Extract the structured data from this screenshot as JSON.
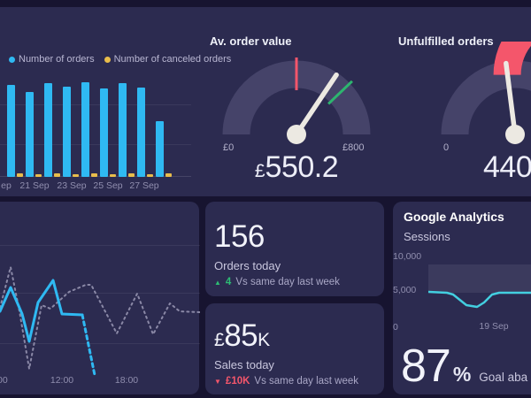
{
  "theme": {
    "page_bg": "#171430",
    "card_bg": "#2c2b50",
    "cyan": "#2fb9f2",
    "yellow": "#e9bd4b",
    "red": "#f4566b",
    "green": "#2dbd74",
    "ga_line": "#43cfe0",
    "needle": "#ece9e2",
    "gauge_track": "#454369",
    "dashed_line": "#8a88a6"
  },
  "chart_data": [
    {
      "id": "orders-per-day",
      "type": "bar",
      "legend": [
        {
          "label": "Number of orders",
          "color": "#2fb9f2"
        },
        {
          "label": "Number of canceled orders",
          "color": "#e9bd4b"
        }
      ],
      "x_labels": [
        "ep",
        "21 Sep",
        "23 Sep",
        "25 Sep",
        "27 Sep"
      ],
      "series": [
        {
          "name": "Number of orders",
          "color": "#2fb9f2",
          "values": [
            104,
            96,
            106,
            102,
            107,
            100,
            106,
            101,
            63
          ]
        },
        {
          "name": "Number of canceled orders",
          "color": "#e9bd4b",
          "values": [
            4,
            3,
            4,
            3,
            4,
            3,
            4,
            3,
            4
          ]
        }
      ],
      "ylabel": "",
      "grid": "horizontal"
    },
    {
      "id": "orders-by-hour",
      "type": "line",
      "x_labels": [
        "00",
        "12:00",
        "18:00"
      ],
      "series": [
        {
          "name": "today",
          "style": "solid",
          "color": "#2fb9f2",
          "points": [
            [
              0,
              84
            ],
            [
              12,
              57
            ],
            [
              25,
              87
            ],
            [
              33,
              118
            ],
            [
              43,
              74
            ],
            [
              60,
              49
            ],
            [
              70,
              87
            ],
            [
              93,
              88
            ]
          ]
        },
        {
          "name": "today-projection",
          "style": "dashed",
          "color": "#2fb9f2",
          "points": [
            [
              93,
              88
            ],
            [
              100,
              122
            ],
            [
              107,
              156
            ]
          ]
        },
        {
          "name": "comparison",
          "style": "dashed",
          "color": "#8a88a6",
          "points": [
            [
              0,
              80
            ],
            [
              12,
              34
            ],
            [
              22,
              84
            ],
            [
              33,
              149
            ],
            [
              47,
              77
            ],
            [
              57,
              81
            ],
            [
              78,
              62
            ],
            [
              97,
              54
            ],
            [
              103,
              54
            ],
            [
              132,
              109
            ],
            [
              155,
              64
            ],
            [
              173,
              110
            ],
            [
              192,
              75
            ],
            [
              203,
              84
            ],
            [
              226,
              85
            ]
          ]
        }
      ]
    },
    {
      "id": "ga-sessions",
      "type": "line",
      "title": "Sessions",
      "y_labels": [
        "10,000",
        "5,000",
        "0"
      ],
      "x_labels": [
        "19 Sep"
      ],
      "series": [
        {
          "name": "Sessions",
          "color": "#43cfe0",
          "points": [
            [
              0,
              47
            ],
            [
              21,
              48
            ],
            [
              28,
              50
            ],
            [
              43,
              62
            ],
            [
              55,
              64
            ],
            [
              63,
              59
            ],
            [
              72,
              50
            ],
            [
              80,
              48
            ],
            [
              120,
              48
            ]
          ]
        }
      ],
      "band": {
        "color": "rgba(255,255,255,0.075)"
      }
    },
    {
      "id": "avg-order-value-gauge",
      "type": "gauge",
      "title": "Av. order value",
      "min_label": "£0",
      "max_label": "£800",
      "value_currency": "£",
      "value": "550.2",
      "frac": 0.688,
      "ticks": [
        {
          "frac": 0.5,
          "color": "#f4566b"
        },
        {
          "frac": 0.757,
          "color": "#2db56f"
        }
      ]
    },
    {
      "id": "unfulfilled-orders-gauge",
      "type": "gauge",
      "title": "Unfulfilled orders",
      "min_label": "0",
      "value": "440",
      "frac": 0.46,
      "zone": {
        "from": 0.458,
        "to": 1,
        "color": "#f4566b"
      }
    }
  ],
  "stat_orders": {
    "value": "156",
    "label": "Orders today",
    "delta": {
      "direction": "▲",
      "value": "4",
      "text": "Vs same day last week",
      "color": "#2dbd74"
    }
  },
  "stat_sales": {
    "currency": "£",
    "value": "85",
    "suffix": "K",
    "label": "Sales today",
    "delta": {
      "direction": "▼",
      "value": "£10K",
      "text": "Vs same day last week",
      "color": "#f4566b"
    }
  },
  "google_analytics": {
    "title": "Google Analytics",
    "goal": {
      "value": "87",
      "unit": "%",
      "label": "Goal aba"
    }
  }
}
